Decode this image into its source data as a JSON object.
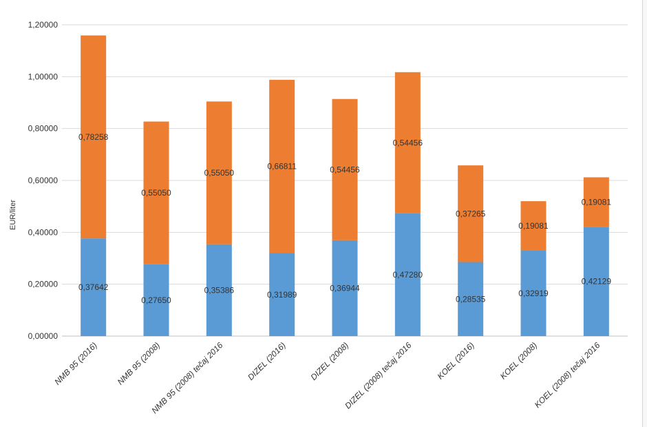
{
  "chart_data": {
    "type": "bar",
    "stacked": true,
    "title": "",
    "xlabel": "",
    "ylabel": "EUR/liter",
    "ylim": [
      0,
      1.2
    ],
    "yticks": [
      "0,00000",
      "0,20000",
      "0,40000",
      "0,60000",
      "0,80000",
      "1,00000",
      "1,20000"
    ],
    "yticks_values": [
      0,
      0.2,
      0.4,
      0.6,
      0.8,
      1.0,
      1.2
    ],
    "grid": true,
    "categories": [
      "NMB 95 (2016)",
      "NMB 95 (2008)",
      "NMB 95 (2008) tečaj 2016",
      "DIZEL (2016)",
      "DIZEL (2008)",
      "DIZEL (2008) tečaj 2016",
      "KOEL (2016)",
      "KOEL (2008)",
      "KOEL (2008) tečaj 2016"
    ],
    "series": [
      {
        "name": "bottom",
        "color": "#5B9BD5",
        "values": [
          0.37642,
          0.2765,
          0.35386,
          0.31989,
          0.36944,
          0.4728,
          0.28535,
          0.32919,
          0.42129
        ],
        "labels": [
          "0,37642",
          "0,27650",
          "0,35386",
          "0,31989",
          "0,36944",
          "0,47280",
          "0,28535",
          "0,32919",
          "0,42129"
        ]
      },
      {
        "name": "top",
        "color": "#ED7D31",
        "values": [
          0.78258,
          0.5505,
          0.5505,
          0.66811,
          0.54456,
          0.54456,
          0.37265,
          0.19081,
          0.19081
        ],
        "labels": [
          "0,78258",
          "0,55050",
          "0,55050",
          "0,66811",
          "0,54456",
          "0,54456",
          "0,37265",
          "0,19081",
          "0,19081"
        ]
      }
    ]
  }
}
